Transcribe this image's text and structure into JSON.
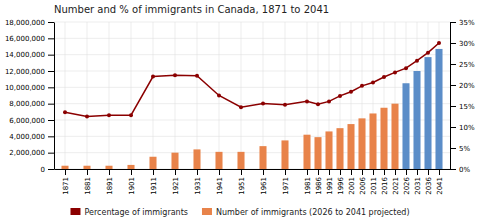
{
  "chart_data": {
    "type": "bar",
    "title": "Number and % of immigrants in Canada, 1871 to 2041",
    "x": [
      1871,
      1881,
      1891,
      1901,
      1911,
      1921,
      1931,
      1941,
      1951,
      1961,
      1971,
      1981,
      1986,
      1991,
      1996,
      2001,
      2006,
      2011,
      2016,
      2021,
      2026,
      2031,
      2036,
      2041
    ],
    "xlim": [
      1866,
      2046
    ],
    "xticks": [
      1871,
      1881,
      1891,
      1901,
      1911,
      1921,
      1931,
      1941,
      1951,
      1961,
      1971,
      1981,
      1986,
      1991,
      1996,
      2001,
      2006,
      2011,
      2016,
      2021,
      2026,
      2031,
      2036,
      2041
    ],
    "series": [
      {
        "name": "Number of immigrants (2026 to 2041 projected)",
        "type": "bar",
        "color": "#E8834A",
        "colors": [
          "#E8834A",
          "#E8834A",
          "#E8834A",
          "#E8834A",
          "#E8834A",
          "#E8834A",
          "#E8834A",
          "#E8834A",
          "#E8834A",
          "#E8834A",
          "#E8834A",
          "#E8834A",
          "#E8834A",
          "#E8834A",
          "#E8834A",
          "#E8834A",
          "#E8834A",
          "#E8834A",
          "#E8834A",
          "#E8834A",
          "#5B8DC8",
          "#5B8DC8",
          "#5B8DC8",
          "#5B8DC8"
        ],
        "values": [
          400000,
          400000,
          400000,
          500000,
          1500000,
          2000000,
          2400000,
          2100000,
          2100000,
          2800000,
          3500000,
          4200000,
          3900000,
          4600000,
          5000000,
          5500000,
          6200000,
          6800000,
          7500000,
          8000000,
          10500000,
          12000000,
          13700000,
          14700000
        ]
      },
      {
        "name": "Percentage of immigrants",
        "type": "line",
        "axis": "y2",
        "color": "#8B0000",
        "marker": "circle",
        "values": [
          13.5,
          12.5,
          12.8,
          12.8,
          22.0,
          22.3,
          22.2,
          17.5,
          14.7,
          15.6,
          15.3,
          16.1,
          15.4,
          16.1,
          17.4,
          18.4,
          19.8,
          20.6,
          21.9,
          23.0,
          24.0,
          25.8,
          27.7,
          30.0
        ]
      }
    ],
    "ylim": [
      0,
      18000000
    ],
    "yticks": [
      0,
      {
        "value": 2000000,
        "label": "2,000,000"
      },
      {
        "value": 4000000,
        "label": "4,000,000"
      },
      {
        "value": 6000000,
        "label": "6,000,000"
      },
      {
        "value": 8000000,
        "label": "8,000,000"
      },
      {
        "value": 10000000,
        "label": "10,000,000"
      },
      {
        "value": 12000000,
        "label": "12,000,000"
      },
      {
        "value": 14000000,
        "label": "14,000,000"
      },
      {
        "value": 16000000,
        "label": "16,000,000"
      },
      {
        "value": 18000000,
        "label": "18,000,000"
      }
    ],
    "y2lim": [
      0,
      35
    ],
    "y2ticks": [
      {
        "value": 0,
        "label": "0%"
      },
      {
        "value": 5,
        "label": "5%"
      },
      {
        "value": 10,
        "label": "10%"
      },
      {
        "value": 15,
        "label": "15%"
      },
      {
        "value": 20,
        "label": "20%"
      },
      {
        "value": 25,
        "label": "25%"
      },
      {
        "value": 30,
        "label": "30%"
      },
      {
        "value": 35,
        "label": "35%"
      }
    ],
    "grid": true,
    "legend": "bottom"
  }
}
